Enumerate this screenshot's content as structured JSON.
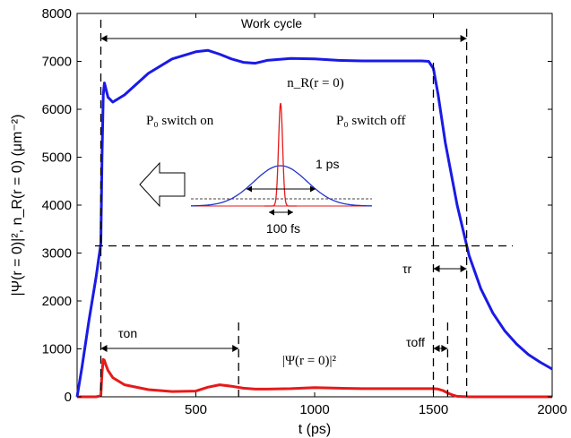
{
  "chart_data": {
    "type": "line",
    "title": "",
    "xlabel": "t (ps)",
    "ylabel": "|Ψ(r = 0)|², n_R(r = 0) (μm⁻²)",
    "xlim": [
      0,
      2000
    ],
    "ylim": [
      0,
      8000
    ],
    "x_ticks": [
      500,
      1000,
      1500,
      2000
    ],
    "y_ticks": [
      0,
      1000,
      2000,
      3000,
      4000,
      5000,
      6000,
      7000,
      8000
    ],
    "grid": false,
    "legend": "none",
    "series": [
      {
        "name": "n_R(r = 0)",
        "color": "#1a1ae6",
        "x": [
          0,
          20,
          50,
          80,
          100,
          105,
          110,
          115,
          120,
          130,
          150,
          200,
          300,
          400,
          500,
          550,
          600,
          650,
          700,
          750,
          800,
          900,
          1000,
          1100,
          1200,
          1300,
          1400,
          1450,
          1480,
          1500,
          1520,
          1550,
          1600,
          1650,
          1700,
          1750,
          1800,
          1850,
          1900,
          1950,
          2000
        ],
        "values": [
          0,
          600,
          1600,
          2500,
          3200,
          5000,
          6300,
          6550,
          6450,
          6250,
          6150,
          6300,
          6750,
          7050,
          7200,
          7230,
          7150,
          7050,
          6980,
          6960,
          7020,
          7060,
          7050,
          7020,
          7010,
          7010,
          7010,
          7010,
          7000,
          6850,
          6300,
          5300,
          4000,
          2950,
          2250,
          1750,
          1380,
          1100,
          880,
          720,
          580
        ]
      },
      {
        "name": "|Ψ(r = 0)|²",
        "color": "#e61a1a",
        "x": [
          0,
          80,
          100,
          105,
          110,
          115,
          120,
          130,
          150,
          200,
          300,
          400,
          500,
          550,
          600,
          650,
          700,
          750,
          800,
          900,
          1000,
          1100,
          1200,
          1300,
          1400,
          1500,
          1520,
          1540,
          1560,
          1580,
          1600,
          1650,
          1700,
          1800,
          1900,
          2000
        ],
        "values": [
          0,
          0,
          20,
          500,
          780,
          760,
          680,
          550,
          400,
          250,
          150,
          110,
          120,
          200,
          250,
          220,
          180,
          160,
          160,
          170,
          190,
          180,
          170,
          170,
          170,
          170,
          160,
          130,
          80,
          40,
          10,
          0,
          0,
          0,
          0,
          0
        ]
      }
    ],
    "annotations": {
      "work_cycle": "Work cycle",
      "nr_label": "n_R(r = 0)",
      "p0_on": "P₀ switch on",
      "p0_off": "P₀ switch off",
      "one_ps": "1 ps",
      "hundred_fs": "100 fs",
      "tau_r": "τr",
      "tau_on": "τon",
      "tau_off": "τoff",
      "psi_label": "|Ψ(r = 0)|²"
    },
    "markers": {
      "vline_on_x": 100,
      "vline_off_x": 1640,
      "tau_on_end_x": 680,
      "tau_off_start_x": 1500,
      "tau_off_end_x": 1560,
      "hline_y": 3150
    }
  }
}
